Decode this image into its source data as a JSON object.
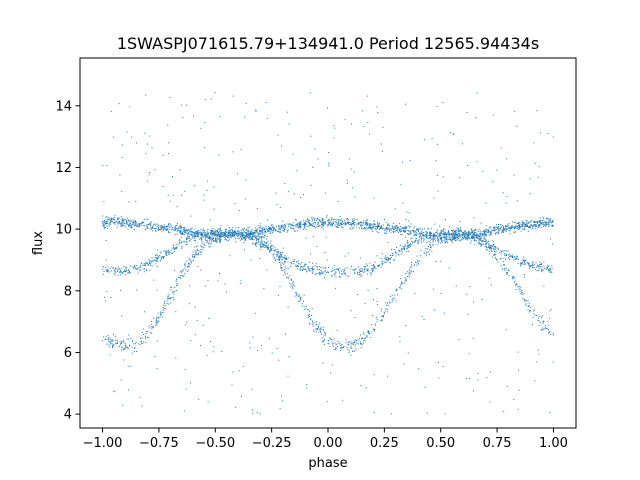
{
  "chart_data": {
    "type": "scatter",
    "title": "1SWASPJ071615.79+134941.0 Period 12565.94434s",
    "xlabel": "phase",
    "ylabel": "flux",
    "xlim": [
      -1.1,
      1.1
    ],
    "ylim": [
      3.55,
      15.55
    ],
    "xticks": [
      -1.0,
      -0.75,
      -0.5,
      -0.25,
      0.0,
      0.25,
      0.5,
      0.75,
      1.0
    ],
    "xtick_labels": [
      "−1.00",
      "−0.75",
      "−0.50",
      "−0.25",
      "0.00",
      "0.25",
      "0.50",
      "0.75",
      "1.00"
    ],
    "yticks": [
      4,
      6,
      8,
      10,
      12,
      14
    ],
    "ytick_labels": [
      "4",
      "6",
      "8",
      "10",
      "12",
      "14"
    ],
    "grid": false,
    "legend": "none",
    "marker_color": "#1f77b4",
    "series": [
      {
        "x": [
          -1.0,
          -0.95,
          -0.9,
          -0.85,
          -0.8,
          -0.75,
          -0.7,
          -0.65,
          -0.6,
          -0.55,
          -0.5,
          -0.45,
          -0.4,
          -0.35,
          -0.3,
          -0.25,
          -0.2,
          -0.15,
          -0.1,
          -0.05,
          0.0,
          0.05,
          0.1,
          0.15,
          0.2,
          0.25,
          0.3,
          0.35,
          0.4,
          0.45,
          0.5,
          0.55,
          0.6,
          0.65,
          0.7,
          0.75,
          0.8,
          0.85,
          0.9,
          0.95,
          1.0
        ],
        "y": [
          10.2,
          10.25,
          10.2,
          10.15,
          10.15,
          10.05,
          10.0,
          9.95,
          9.85,
          9.8,
          9.75,
          9.8,
          9.8,
          9.85,
          9.95,
          10.0,
          10.05,
          10.1,
          10.15,
          10.2,
          10.2,
          10.2,
          10.2,
          10.15,
          10.1,
          10.05,
          10.0,
          9.95,
          9.9,
          9.8,
          9.75,
          9.75,
          9.8,
          9.85,
          9.9,
          10.0,
          10.05,
          10.1,
          10.15,
          10.2,
          10.2
        ]
      },
      {
        "x": [
          -1.0,
          -0.95,
          -0.9,
          -0.85,
          -0.8,
          -0.75,
          -0.7,
          -0.65,
          -0.6,
          -0.55,
          -0.5,
          -0.45,
          -0.4,
          -0.35,
          -0.3,
          -0.25,
          -0.2,
          -0.15,
          -0.1,
          -0.05,
          0.0,
          0.05,
          0.1,
          0.15,
          0.2,
          0.25,
          0.3,
          0.35,
          0.4,
          0.45,
          0.5,
          0.55,
          0.6,
          0.65,
          0.7,
          0.75,
          0.8,
          0.85,
          0.9,
          0.95,
          1.0
        ],
        "y": [
          8.7,
          8.65,
          8.65,
          8.7,
          8.85,
          9.05,
          9.3,
          9.55,
          9.75,
          9.85,
          9.9,
          9.9,
          9.85,
          9.75,
          9.55,
          9.35,
          9.1,
          8.9,
          8.75,
          8.65,
          8.6,
          8.6,
          8.6,
          8.65,
          8.75,
          8.95,
          9.2,
          9.45,
          9.65,
          9.8,
          9.9,
          9.9,
          9.85,
          9.75,
          9.55,
          9.35,
          9.15,
          9.0,
          8.85,
          8.75,
          8.7
        ]
      },
      {
        "x": [
          -1.0,
          -0.95,
          -0.9,
          -0.85,
          -0.8,
          -0.75,
          -0.7,
          -0.65,
          -0.6,
          -0.55,
          -0.5,
          -0.45,
          -0.4,
          -0.35,
          -0.3,
          -0.25,
          -0.2,
          -0.15,
          -0.1,
          -0.05,
          0.0,
          0.05,
          0.1,
          0.15,
          0.2,
          0.25,
          0.3,
          0.35,
          0.4,
          0.45,
          0.5,
          0.55,
          0.6,
          0.65,
          0.7,
          0.75,
          0.8,
          0.85,
          0.9,
          0.95,
          1.0
        ],
        "y": [
          6.5,
          6.3,
          6.2,
          6.3,
          6.6,
          7.1,
          7.8,
          8.5,
          9.1,
          9.5,
          9.8,
          9.85,
          9.85,
          9.8,
          9.7,
          9.4,
          8.8,
          8.1,
          7.4,
          6.8,
          6.4,
          6.2,
          6.2,
          6.4,
          6.8,
          7.3,
          7.9,
          8.5,
          9.0,
          9.4,
          9.7,
          9.8,
          9.8,
          9.7,
          9.5,
          9.1,
          8.6,
          8.0,
          7.4,
          6.9,
          6.6
        ]
      }
    ]
  }
}
